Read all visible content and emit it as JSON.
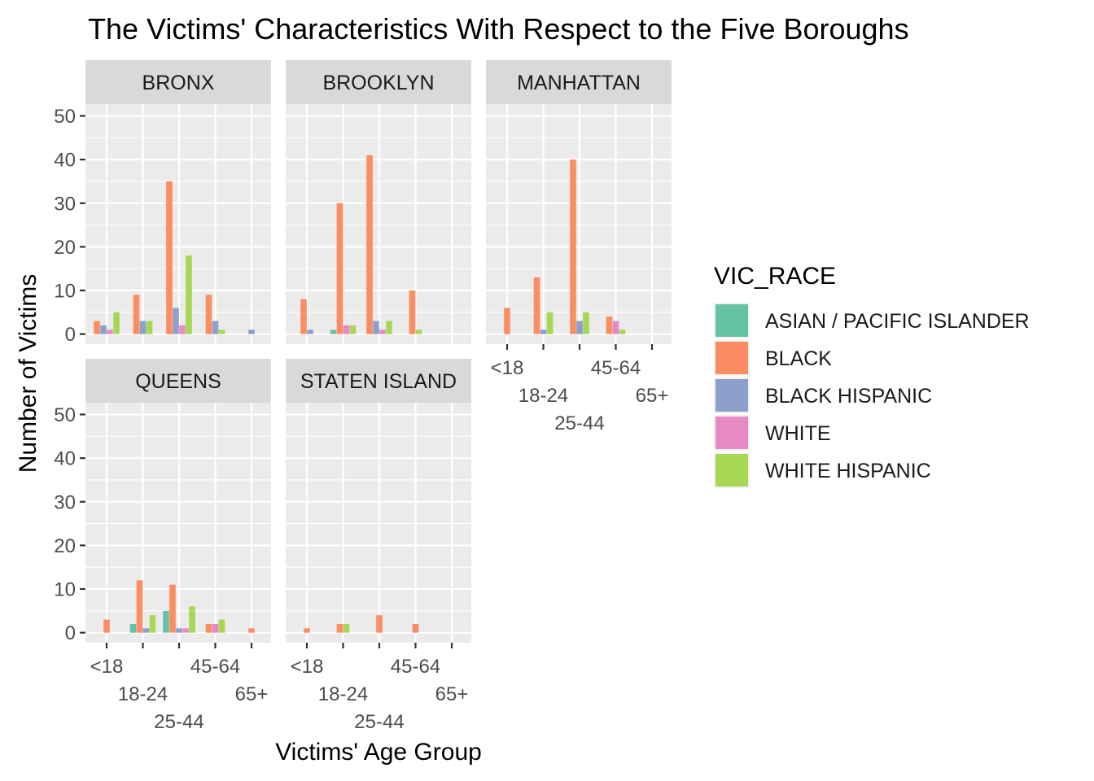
{
  "chart_data": {
    "type": "bar",
    "title": "The Victims' Characteristics With Respect to the Five Boroughs",
    "xlabel": "Victims' Age Group",
    "ylabel": "Number of Victims",
    "ylim": [
      0,
      50
    ],
    "yticks": [
      "0",
      "10",
      "20",
      "30",
      "40",
      "50"
    ],
    "categories": [
      "<18",
      "18-24",
      "25-44",
      "45-64",
      "65+"
    ],
    "legend": {
      "title": "VIC_RACE",
      "position": "right",
      "items": [
        {
          "name": "ASIAN / PACIFIC ISLANDER",
          "color": "#66c2a5"
        },
        {
          "name": "BLACK",
          "color": "#fc8d62"
        },
        {
          "name": "BLACK HISPANIC",
          "color": "#8da0cb"
        },
        {
          "name": "WHITE",
          "color": "#e78ac3"
        },
        {
          "name": "WHITE HISPANIC",
          "color": "#a6d854"
        }
      ]
    },
    "facets": [
      {
        "name": "BRONX",
        "bars": [
          {
            "x": "<18",
            "series": [
              "BLACK",
              "BLACK HISPANIC",
              "WHITE",
              "WHITE HISPANIC"
            ],
            "values": [
              3,
              2,
              1,
              5
            ]
          },
          {
            "x": "18-24",
            "series": [
              "BLACK",
              "BLACK HISPANIC",
              "WHITE HISPANIC"
            ],
            "values": [
              9,
              3,
              3
            ]
          },
          {
            "x": "25-44",
            "series": [
              "BLACK",
              "BLACK HISPANIC",
              "WHITE",
              "WHITE HISPANIC"
            ],
            "values": [
              35,
              6,
              2,
              18
            ]
          },
          {
            "x": "45-64",
            "series": [
              "BLACK",
              "BLACK HISPANIC",
              "WHITE HISPANIC"
            ],
            "values": [
              9,
              3,
              1
            ]
          },
          {
            "x": "65+",
            "series": [
              "BLACK HISPANIC"
            ],
            "values": [
              1
            ]
          }
        ]
      },
      {
        "name": "BROOKLYN",
        "bars": [
          {
            "x": "<18",
            "series": [
              "BLACK",
              "BLACK HISPANIC"
            ],
            "values": [
              8,
              1
            ]
          },
          {
            "x": "18-24",
            "series": [
              "ASIAN / PACIFIC ISLANDER",
              "BLACK",
              "WHITE",
              "WHITE HISPANIC"
            ],
            "values": [
              1,
              30,
              2,
              2
            ]
          },
          {
            "x": "25-44",
            "series": [
              "BLACK",
              "BLACK HISPANIC",
              "WHITE",
              "WHITE HISPANIC"
            ],
            "values": [
              41,
              3,
              1,
              3
            ]
          },
          {
            "x": "45-64",
            "series": [
              "BLACK",
              "WHITE HISPANIC"
            ],
            "values": [
              10,
              1
            ]
          }
        ]
      },
      {
        "name": "MANHATTAN",
        "bars": [
          {
            "x": "<18",
            "series": [
              "BLACK"
            ],
            "values": [
              6
            ]
          },
          {
            "x": "18-24",
            "series": [
              "BLACK",
              "BLACK HISPANIC",
              "WHITE HISPANIC"
            ],
            "values": [
              13,
              1,
              5
            ]
          },
          {
            "x": "25-44",
            "series": [
              "BLACK",
              "BLACK HISPANIC",
              "WHITE HISPANIC"
            ],
            "values": [
              40,
              3,
              5
            ]
          },
          {
            "x": "45-64",
            "series": [
              "BLACK",
              "WHITE",
              "WHITE HISPANIC"
            ],
            "values": [
              4,
              3,
              1
            ]
          }
        ]
      },
      {
        "name": "QUEENS",
        "bars": [
          {
            "x": "<18",
            "series": [
              "BLACK"
            ],
            "values": [
              3
            ]
          },
          {
            "x": "18-24",
            "series": [
              "ASIAN / PACIFIC ISLANDER",
              "BLACK",
              "BLACK HISPANIC",
              "WHITE HISPANIC"
            ],
            "values": [
              2,
              12,
              1,
              4
            ]
          },
          {
            "x": "25-44",
            "series": [
              "ASIAN / PACIFIC ISLANDER",
              "BLACK",
              "BLACK HISPANIC",
              "WHITE",
              "WHITE HISPANIC"
            ],
            "values": [
              5,
              11,
              1,
              1,
              6
            ]
          },
          {
            "x": "45-64",
            "series": [
              "BLACK",
              "WHITE",
              "WHITE HISPANIC"
            ],
            "values": [
              2,
              2,
              3
            ]
          },
          {
            "x": "65+",
            "series": [
              "BLACK"
            ],
            "values": [
              1
            ]
          }
        ]
      },
      {
        "name": "STATEN ISLAND",
        "bars": [
          {
            "x": "<18",
            "series": [
              "BLACK"
            ],
            "values": [
              1
            ]
          },
          {
            "x": "18-24",
            "series": [
              "BLACK",
              "WHITE HISPANIC"
            ],
            "values": [
              2,
              2
            ]
          },
          {
            "x": "25-44",
            "series": [
              "BLACK"
            ],
            "values": [
              4
            ]
          },
          {
            "x": "45-64",
            "series": [
              "BLACK"
            ],
            "values": [
              2
            ]
          }
        ]
      }
    ]
  }
}
